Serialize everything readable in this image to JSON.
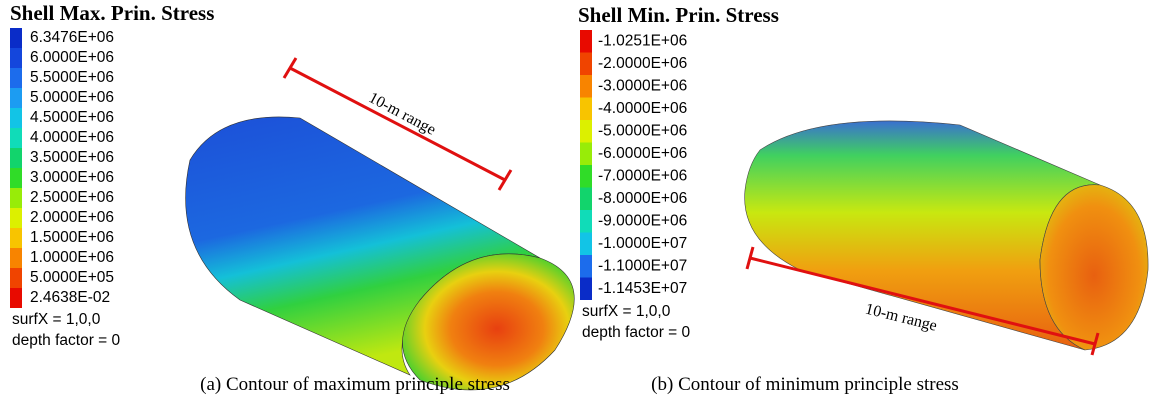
{
  "panels": [
    {
      "title": "Shell Max. Prin. Stress",
      "legend": [
        {
          "label": "6.3476E+06",
          "color": "#0a2cc8"
        },
        {
          "label": "6.0000E+06",
          "color": "#1446dc"
        },
        {
          "label": "5.5000E+06",
          "color": "#1c6cec"
        },
        {
          "label": "5.0000E+06",
          "color": "#1c9cf2"
        },
        {
          "label": "4.5000E+06",
          "color": "#12c4e6"
        },
        {
          "label": "4.0000E+06",
          "color": "#10dcb8"
        },
        {
          "label": "3.5000E+06",
          "color": "#12d46c"
        },
        {
          "label": "3.0000E+06",
          "color": "#30dc28"
        },
        {
          "label": "2.5000E+06",
          "color": "#98ec08"
        },
        {
          "label": "2.0000E+06",
          "color": "#dcf000"
        },
        {
          "label": "1.5000E+06",
          "color": "#f8c400"
        },
        {
          "label": "1.0000E+06",
          "color": "#f88400"
        },
        {
          "label": "5.0000E+05",
          "color": "#f04400"
        },
        {
          "label": "2.4638E-02",
          "color": "#e80a00"
        }
      ],
      "surf": "surfX = 1,0,0",
      "depth": "depth factor = 0",
      "annotation": "10-m range",
      "caption": "(a) Contour of maximum principle stress"
    },
    {
      "title": "Shell Min. Prin. Stress",
      "legend": [
        {
          "label": "-1.0251E+06",
          "color": "#e80a00"
        },
        {
          "label": "-2.0000E+06",
          "color": "#f04400"
        },
        {
          "label": "-3.0000E+06",
          "color": "#f88400"
        },
        {
          "label": "-4.0000E+06",
          "color": "#f8c400"
        },
        {
          "label": "-5.0000E+06",
          "color": "#dcf000"
        },
        {
          "label": "-6.0000E+06",
          "color": "#98ec08"
        },
        {
          "label": "-7.0000E+06",
          "color": "#30dc28"
        },
        {
          "label": "-8.0000E+06",
          "color": "#12d46c"
        },
        {
          "label": "-9.0000E+06",
          "color": "#10dcb8"
        },
        {
          "label": "-1.0000E+07",
          "color": "#12c4e6"
        },
        {
          "label": "-1.1000E+07",
          "color": "#1c6cec"
        },
        {
          "label": "-1.1453E+07",
          "color": "#0a2cc8"
        }
      ],
      "surf": "surfX = 1,0,0",
      "depth": "depth factor = 0",
      "annotation": "10-m range",
      "caption": "(b) Contour of minimum principle stress"
    }
  ]
}
